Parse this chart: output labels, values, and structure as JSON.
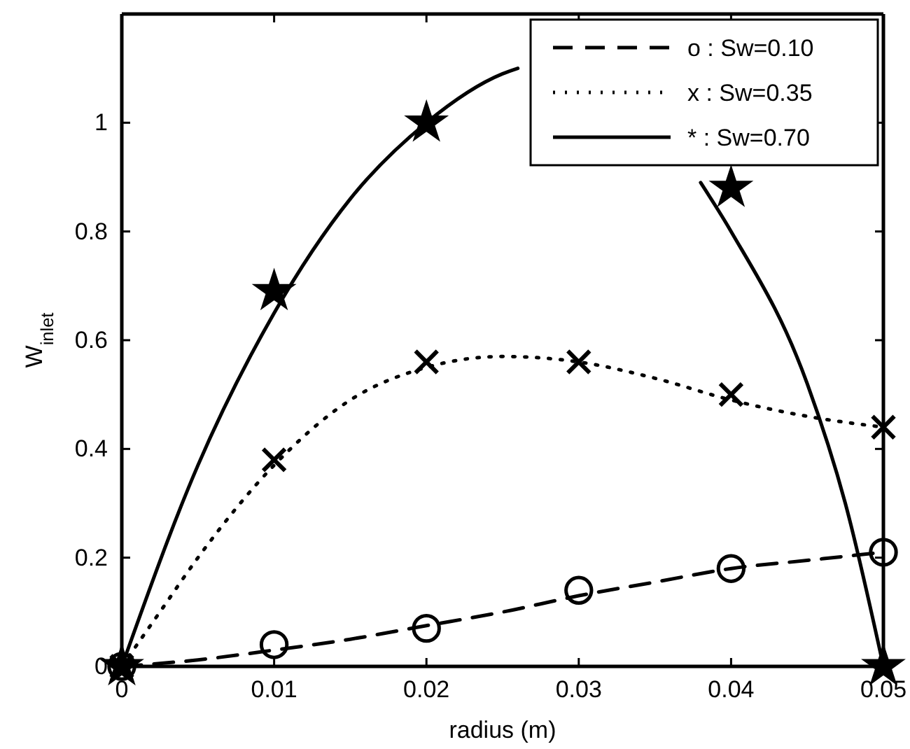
{
  "chart_data": {
    "type": "line",
    "xlabel": "radius (m)",
    "ylabel": "W$_{inlet}$",
    "xlim": [
      0,
      0.05
    ],
    "xticks": [
      0,
      0.01,
      0.02,
      0.03,
      0.04,
      0.05
    ],
    "ylim": [
      0,
      1.2
    ],
    "yticks": [
      0,
      0.2,
      0.4,
      0.6,
      0.8,
      1
    ],
    "grid": false,
    "legend": "top right",
    "marker": "none",
    "series": [
      {
        "name": "o : Sw=0.10",
        "color": "#000000",
        "line_style": "dashed",
        "x": [
          0,
          0.005,
          0.01,
          0.015,
          0.02,
          0.025,
          0.03,
          0.035,
          0.04,
          0.045,
          0.05
        ],
        "values": [
          0,
          0.012,
          0.03,
          0.05,
          0.075,
          0.1,
          0.13,
          0.155,
          0.18,
          0.195,
          0.21
        ]
      },
      {
        "name": "x : Sw=0.35",
        "color": "#000000",
        "line_style": "dotted",
        "x": [
          0,
          0.0025,
          0.005,
          0.01,
          0.015,
          0.02,
          0.025,
          0.03,
          0.035,
          0.04,
          0.045,
          0.05
        ],
        "values": [
          0,
          0.1,
          0.2,
          0.37,
          0.49,
          0.55,
          0.57,
          0.56,
          0.53,
          0.49,
          0.46,
          0.44
        ]
      },
      {
        "name": "* : Sw=0.70",
        "color": "#000000",
        "line_style": "solid",
        "x": [
          0,
          0.005,
          0.01,
          0.015,
          0.02,
          0.025,
          0.026,
          0.03,
          0.038,
          0.04,
          0.045,
          0.0475,
          0.05
        ],
        "values": [
          0,
          0.37,
          0.65,
          0.86,
          1.0,
          1.09,
          1.1,
          null,
          0.89,
          0.8,
          0.52,
          0.3,
          0
        ]
      },
      {
        "type": "scatter",
        "marker": "circle",
        "color": "#000000",
        "x": [
          0,
          0.01,
          0.02,
          0.03,
          0.04,
          0.05
        ],
        "values": [
          0,
          0.04,
          0.07,
          0.14,
          0.18,
          0.21
        ]
      },
      {
        "type": "scatter",
        "marker": "cross",
        "color": "#000000",
        "x": [
          0,
          0.01,
          0.02,
          0.03,
          0.04,
          0.05
        ],
        "values": [
          0,
          0.38,
          0.56,
          0.56,
          0.5,
          0.44
        ]
      },
      {
        "type": "scatter",
        "marker": "star",
        "color": "#000000",
        "x": [
          0,
          0.01,
          0.02,
          0.03,
          0.04,
          0.05
        ],
        "values": [
          0,
          0.69,
          1.0,
          null,
          0.88,
          0
        ]
      }
    ]
  }
}
